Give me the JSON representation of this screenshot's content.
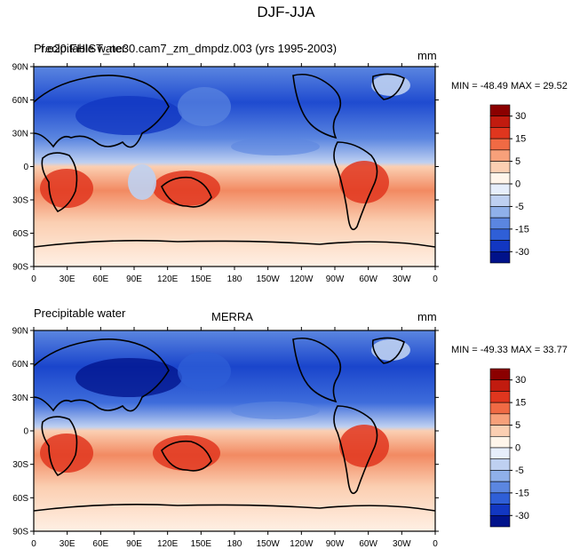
{
  "figure": {
    "title": "DJF-JJA",
    "panels": [
      {
        "id": "model",
        "left_title": "Precipitable water",
        "center_title": "f.e20.FHIST_ne30.cam7_zm_dmpdz.003 (yrs 1995-2003)",
        "units": "mm",
        "minmax": "MIN = -48.49 MAX =  29.52"
      },
      {
        "id": "obs",
        "left_title": "Precipitable water",
        "center_title": "MERRA",
        "units": "mm",
        "minmax": "MIN = -49.33 MAX =  33.77"
      }
    ],
    "lat_labels": [
      "90N",
      "60N",
      "30N",
      "0",
      "30S",
      "60S",
      "90S"
    ],
    "lon_labels": [
      "0",
      "30E",
      "60E",
      "90E",
      "120E",
      "150E",
      "180",
      "150W",
      "120W",
      "90W",
      "60W",
      "30W",
      "0"
    ],
    "colorbar": {
      "labels": [
        "30",
        "15",
        "5",
        "0",
        "-5",
        "-15",
        "-30"
      ],
      "colors": [
        "#8b0000",
        "#c11b0f",
        "#e0361e",
        "#f06a44",
        "#f7a07a",
        "#fbcfb2",
        "#fff5ea",
        "#e6eefb",
        "#bed0f1",
        "#8fb0ea",
        "#5b86e0",
        "#2f5fd7",
        "#1237c2",
        "#00128a"
      ]
    }
  }
}
